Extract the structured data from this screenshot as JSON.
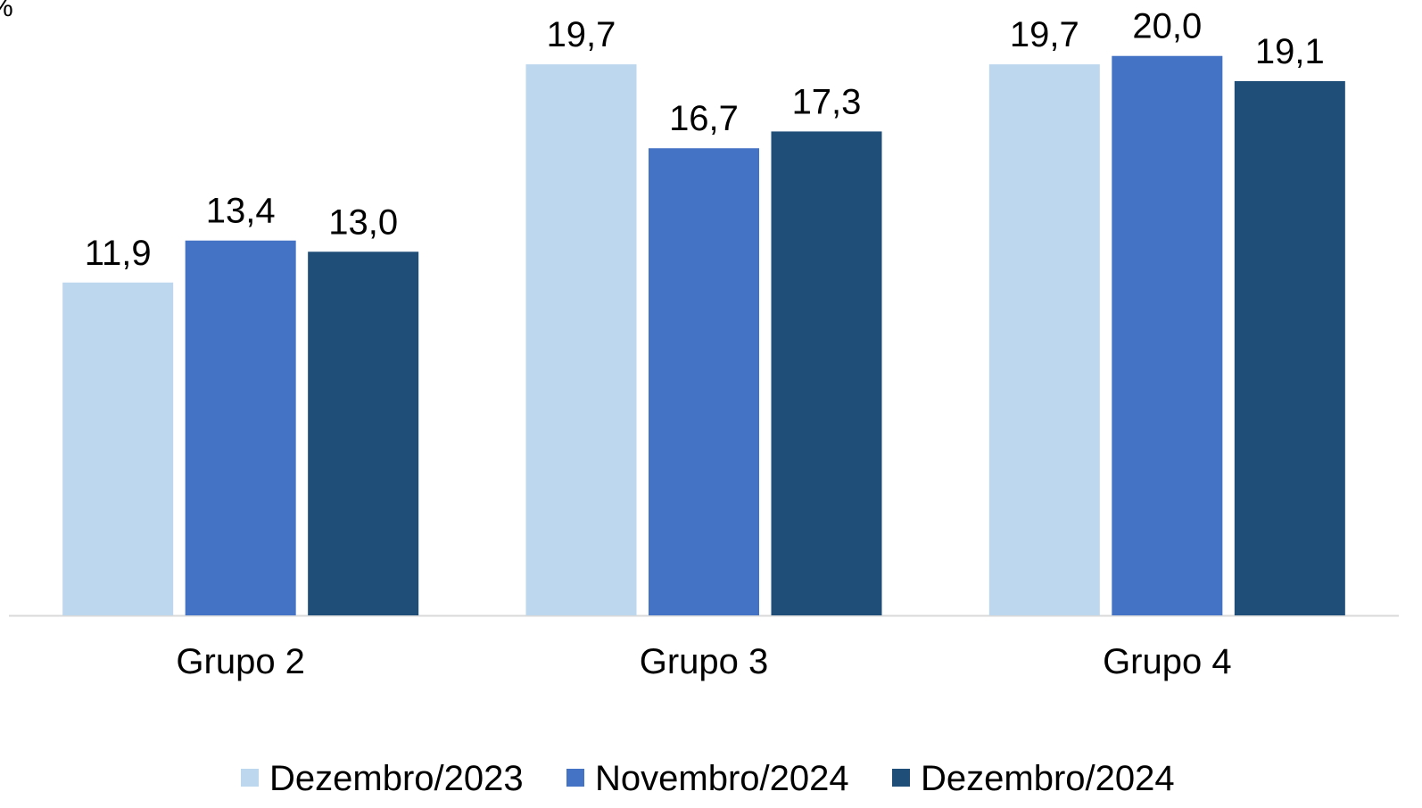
{
  "chart_data": {
    "type": "bar",
    "y_label": "%",
    "categories": [
      "Grupo 2",
      "Grupo 3",
      "Grupo 4"
    ],
    "series": [
      {
        "name": "Dezembro/2023",
        "color": "#bdd7ee",
        "values": [
          11.9,
          19.7,
          19.7
        ],
        "value_labels": [
          "11,9",
          "19,7",
          "19,7"
        ]
      },
      {
        "name": "Novembro/2024",
        "color": "#4472c4",
        "values": [
          13.4,
          16.7,
          20.0
        ],
        "value_labels": [
          "13,4",
          "16,7",
          "20,0"
        ]
      },
      {
        "name": "Dezembro/2024",
        "color": "#1f4e79",
        "values": [
          13.0,
          17.3,
          19.1
        ],
        "value_labels": [
          "13,0",
          "17,3",
          "19,1"
        ]
      }
    ],
    "ylim": [
      0,
      22
    ],
    "legend": "bottom"
  }
}
